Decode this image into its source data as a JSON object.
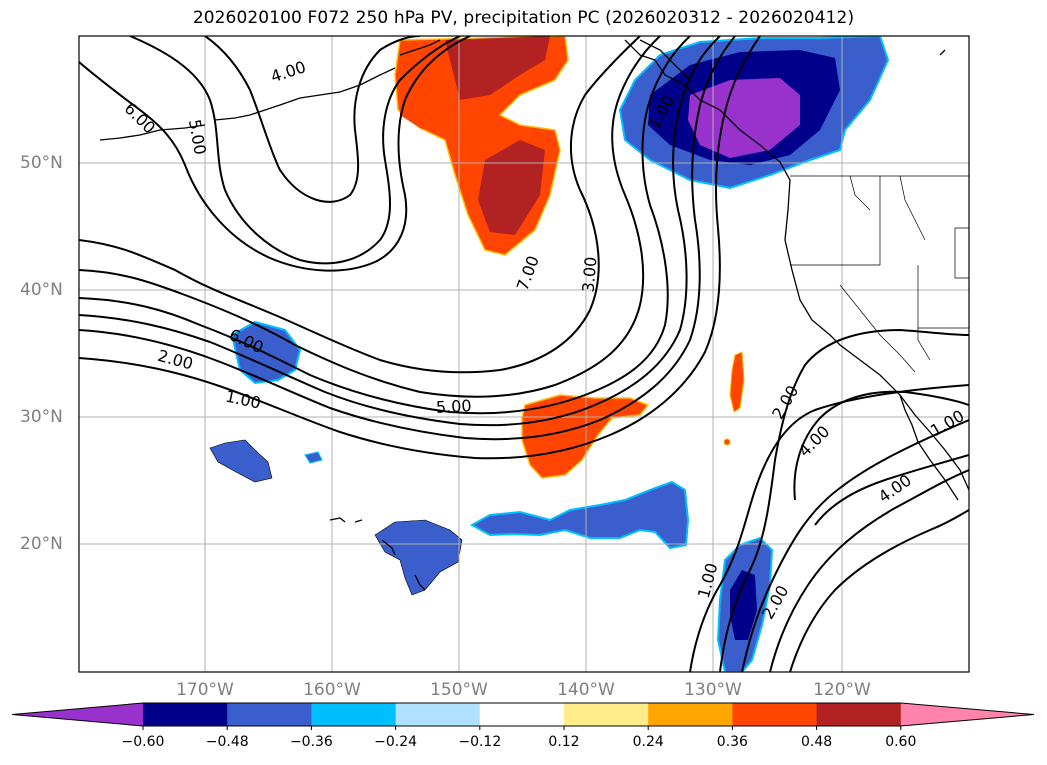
{
  "title": "2026020100 F072 250 hPa PV, precipitation PC (2026020312 - 2026020412)",
  "map": {
    "lat_labels": [
      "50°N",
      "40°N",
      "30°N",
      "20°N"
    ],
    "lon_labels": [
      "170°W",
      "160°W",
      "150°W",
      "140°W",
      "130°W",
      "120°W"
    ],
    "contour_labels": [
      "4.00",
      "6.00",
      "5.00",
      "7.00",
      "3.00",
      "1.00",
      "6.00",
      "2.00",
      "1.00",
      "5.00",
      "2.00",
      "4.00",
      "1.00",
      "1.00",
      "2.00",
      "4.00"
    ]
  },
  "colorbar": {
    "ticks": [
      "−0.60",
      "−0.48",
      "−0.36",
      "−0.24",
      "−0.12",
      "0.12",
      "0.24",
      "0.36",
      "0.48",
      "0.60"
    ],
    "colors": [
      "#9932cc",
      "#00008b",
      "#3a5fcd",
      "#00bfff",
      "#b0e2ff",
      "#ffffff",
      "#ffec8b",
      "#ffa500",
      "#ff4500",
      "#b22222",
      "#ff83aa"
    ]
  }
}
